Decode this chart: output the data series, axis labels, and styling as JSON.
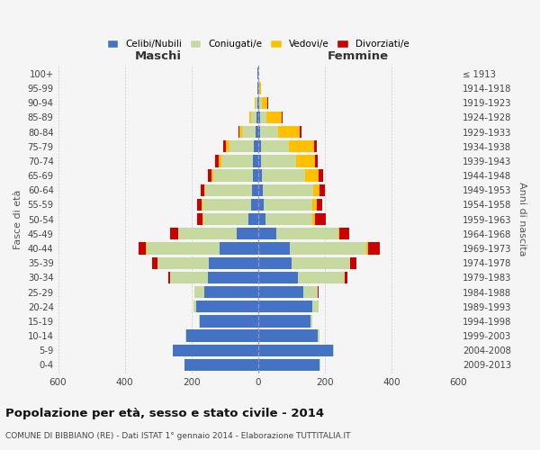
{
  "age_groups": [
    "0-4",
    "5-9",
    "10-14",
    "15-19",
    "20-24",
    "25-29",
    "30-34",
    "35-39",
    "40-44",
    "45-49",
    "50-54",
    "55-59",
    "60-64",
    "65-69",
    "70-74",
    "75-79",
    "80-84",
    "85-89",
    "90-94",
    "95-99",
    "100+"
  ],
  "birth_years": [
    "2009-2013",
    "2004-2008",
    "1999-2003",
    "1994-1998",
    "1989-1993",
    "1984-1988",
    "1979-1983",
    "1974-1978",
    "1969-1973",
    "1964-1968",
    "1959-1963",
    "1954-1958",
    "1949-1953",
    "1944-1948",
    "1939-1943",
    "1934-1938",
    "1929-1933",
    "1924-1928",
    "1919-1923",
    "1914-1918",
    "≤ 1913"
  ],
  "maschi": {
    "celibi": [
      220,
      255,
      215,
      175,
      185,
      160,
      150,
      148,
      115,
      65,
      30,
      22,
      18,
      15,
      15,
      12,
      8,
      5,
      3,
      1,
      1
    ],
    "coniugati": [
      2,
      2,
      2,
      3,
      10,
      30,
      115,
      155,
      220,
      175,
      135,
      145,
      140,
      120,
      95,
      75,
      40,
      15,
      5,
      2,
      1
    ],
    "vedovi": [
      0,
      0,
      0,
      0,
      0,
      0,
      0,
      0,
      1,
      1,
      1,
      2,
      3,
      5,
      8,
      10,
      8,
      5,
      1,
      0,
      0
    ],
    "divorziati": [
      0,
      0,
      0,
      0,
      0,
      2,
      5,
      15,
      22,
      22,
      18,
      15,
      12,
      10,
      12,
      8,
      4,
      2,
      0,
      0,
      0
    ]
  },
  "femmine": {
    "nubili": [
      185,
      225,
      180,
      158,
      162,
      135,
      120,
      100,
      95,
      55,
      22,
      18,
      15,
      12,
      10,
      8,
      5,
      5,
      3,
      2,
      1
    ],
    "coniugate": [
      2,
      2,
      3,
      5,
      20,
      45,
      140,
      175,
      230,
      185,
      140,
      145,
      150,
      130,
      105,
      85,
      55,
      20,
      8,
      2,
      0
    ],
    "vedove": [
      0,
      0,
      0,
      0,
      0,
      0,
      1,
      2,
      4,
      5,
      10,
      12,
      20,
      40,
      55,
      75,
      65,
      45,
      18,
      5,
      1
    ],
    "divorziate": [
      0,
      0,
      0,
      0,
      0,
      2,
      8,
      18,
      35,
      28,
      30,
      18,
      15,
      12,
      10,
      8,
      5,
      3,
      1,
      0,
      0
    ]
  },
  "colors": {
    "celibi_nubili": "#4472c4",
    "coniugati": "#c5d9a0",
    "vedovi": "#ffc000",
    "divorziati": "#cc0000"
  },
  "title": "Popolazione per età, sesso e stato civile - 2014",
  "subtitle": "COMUNE DI BIBBIANO (RE) - Dati ISTAT 1° gennaio 2014 - Elaborazione TUTTITALIA.IT",
  "xlabel_left": "Maschi",
  "xlabel_right": "Femmine",
  "ylabel_left": "Fasce di età",
  "ylabel_right": "Anni di nascita",
  "xlim": 600,
  "background_color": "#f5f5f5",
  "grid_color": "#cccccc"
}
